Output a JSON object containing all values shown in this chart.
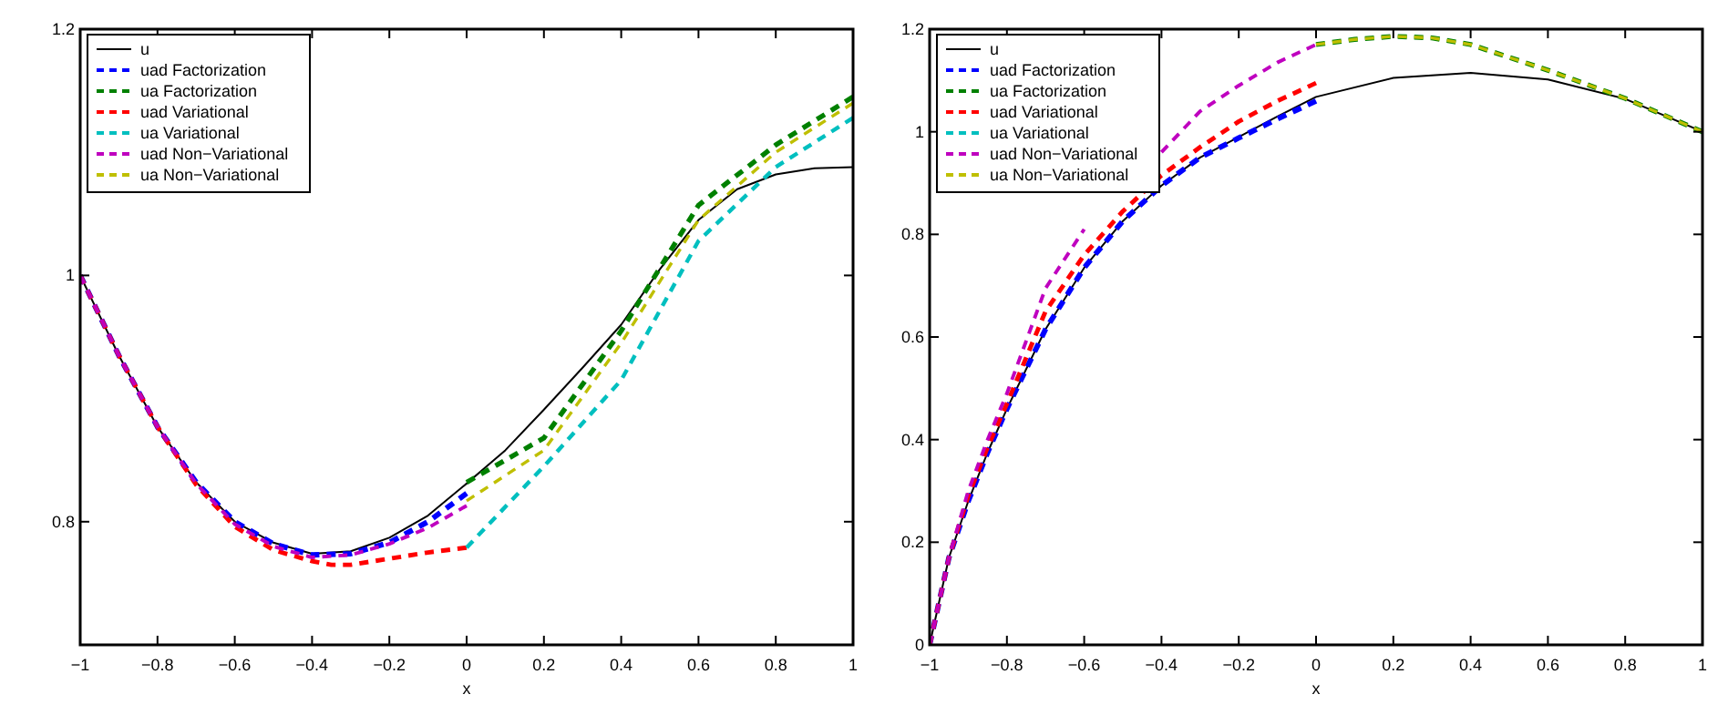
{
  "chart_data": [
    {
      "type": "line",
      "xlabel": "x",
      "xlim": [
        -1,
        1
      ],
      "ylim": [
        0.7,
        1.2
      ],
      "xticks": [
        {
          "value": -1,
          "label": "−1"
        },
        {
          "value": -0.8,
          "label": "−0.8"
        },
        {
          "value": -0.6,
          "label": "−0.6"
        },
        {
          "value": -0.4,
          "label": "−0.4"
        },
        {
          "value": -0.2,
          "label": "−0.2"
        },
        0,
        0.2,
        0.4,
        0.6,
        0.8,
        1
      ],
      "yticks": [
        0.8,
        1,
        1.2
      ],
      "legend": "top left",
      "grid": false,
      "marker": "none",
      "series": [
        {
          "name": "u",
          "color": "#000000",
          "line_style": "solid",
          "x": [
            -1,
            -0.9,
            -0.8,
            -0.7,
            -0.6,
            -0.5,
            -0.4,
            -0.3,
            -0.2,
            -0.1,
            0,
            0.1,
            0.2,
            0.3,
            0.4,
            0.5,
            0.6,
            0.7,
            0.8,
            0.9,
            1
          ],
          "values": [
            1.0,
            0.935,
            0.877,
            0.832,
            0.8,
            0.783,
            0.774,
            0.776,
            0.787,
            0.805,
            0.831,
            0.858,
            0.891,
            0.925,
            0.96,
            1.005,
            1.045,
            1.07,
            1.082,
            1.087,
            1.088
          ]
        },
        {
          "name": "uad Factorization",
          "color": "#0000ff",
          "line_style": "dashed",
          "x": [
            -1,
            -0.9,
            -0.8,
            -0.7,
            -0.6,
            -0.5,
            -0.4,
            -0.3,
            -0.2,
            -0.1,
            0
          ],
          "values": [
            1.0,
            0.935,
            0.877,
            0.832,
            0.8,
            0.782,
            0.773,
            0.774,
            0.783,
            0.8,
            0.823
          ]
        },
        {
          "name": "ua Factorization",
          "color": "#008000",
          "line_style": "dashed",
          "x": [
            0,
            0.2,
            0.4,
            0.6,
            0.8,
            1
          ],
          "values": [
            0.832,
            0.868,
            0.955,
            1.057,
            1.106,
            1.145
          ]
        },
        {
          "name": "uad Variational",
          "color": "#ff0000",
          "line_style": "dashed",
          "x": [
            -1,
            -0.9,
            -0.8,
            -0.7,
            -0.6,
            -0.5,
            -0.4,
            -0.35,
            -0.3,
            -0.2,
            -0.1,
            0
          ],
          "values": [
            1.0,
            0.935,
            0.877,
            0.83,
            0.796,
            0.777,
            0.768,
            0.765,
            0.765,
            0.77,
            0.775,
            0.779
          ]
        },
        {
          "name": "ua Variational",
          "color": "#00bfbf",
          "line_style": "dashed",
          "x": [
            0,
            0.2,
            0.4,
            0.6,
            0.8,
            1
          ],
          "values": [
            0.779,
            0.845,
            0.915,
            1.028,
            1.088,
            1.128
          ]
        },
        {
          "name": "uad Non−Variational",
          "color": "#bf00bf",
          "line_style": "dashed",
          "x": [
            -1,
            -0.9,
            -0.8,
            -0.7,
            -0.6,
            -0.5,
            -0.4,
            -0.3,
            -0.2,
            -0.1,
            0
          ],
          "values": [
            1.0,
            0.935,
            0.877,
            0.831,
            0.798,
            0.78,
            0.771,
            0.773,
            0.782,
            0.795,
            0.813
          ]
        },
        {
          "name": "ua Non−Variational",
          "color": "#bfbf00",
          "line_style": "dashed",
          "x": [
            0,
            0.2,
            0.4,
            0.6,
            0.8,
            1
          ],
          "values": [
            0.817,
            0.858,
            0.945,
            1.045,
            1.1,
            1.14
          ]
        }
      ]
    },
    {
      "type": "line",
      "xlabel": "x",
      "xlim": [
        -1,
        1
      ],
      "ylim": [
        0,
        1.2
      ],
      "xticks": [
        {
          "value": -1,
          "label": "−1"
        },
        {
          "value": -0.8,
          "label": "−0.8"
        },
        {
          "value": -0.6,
          "label": "−0.6"
        },
        {
          "value": -0.4,
          "label": "−0.4"
        },
        {
          "value": -0.2,
          "label": "−0.2"
        },
        0,
        0.2,
        0.4,
        0.6,
        0.8,
        1
      ],
      "yticks": [
        0,
        0.2,
        0.4,
        0.6,
        0.8,
        1,
        1.2
      ],
      "legend": "top left",
      "grid": false,
      "marker": "none",
      "series": [
        {
          "name": "u",
          "color": "#000000",
          "line_style": "solid",
          "x": [
            -1,
            -0.95,
            -0.9,
            -0.85,
            -0.8,
            -0.7,
            -0.6,
            -0.5,
            -0.4,
            -0.3,
            -0.2,
            -0.1,
            0,
            0.2,
            0.4,
            0.6,
            0.8,
            1
          ],
          "values": [
            0,
            0.17,
            0.28,
            0.375,
            0.46,
            0.615,
            0.735,
            0.826,
            0.895,
            0.95,
            0.99,
            1.03,
            1.068,
            1.105,
            1.115,
            1.102,
            1.064,
            1.0
          ]
        },
        {
          "name": "uad Factorization",
          "color": "#0000ff",
          "line_style": "dashed",
          "x": [
            -1,
            -0.95,
            -0.9,
            -0.85,
            -0.8,
            -0.7,
            -0.6,
            -0.5,
            -0.4,
            -0.3,
            -0.2,
            -0.1,
            0
          ],
          "values": [
            0,
            0.17,
            0.28,
            0.375,
            0.46,
            0.615,
            0.735,
            0.826,
            0.895,
            0.95,
            0.988,
            1.025,
            1.06
          ]
        },
        {
          "name": "ua Factorization",
          "color": "#008000",
          "line_style": "dashed",
          "x": [
            0,
            0.1,
            0.2,
            0.3,
            0.4,
            0.6,
            0.8,
            1
          ],
          "values": [
            1.17,
            1.18,
            1.186,
            1.183,
            1.17,
            1.12,
            1.065,
            1.0
          ]
        },
        {
          "name": "uad Variational",
          "color": "#ff0000",
          "line_style": "dashed",
          "x": [
            -1,
            -0.95,
            -0.9,
            -0.85,
            -0.8,
            -0.7,
            -0.6,
            -0.5,
            -0.4,
            -0.3,
            -0.2,
            -0.1,
            0
          ],
          "values": [
            0,
            0.17,
            0.29,
            0.385,
            0.47,
            0.65,
            0.76,
            0.845,
            0.915,
            0.97,
            1.02,
            1.06,
            1.095
          ]
        },
        {
          "name": "ua Variational",
          "color": "#00bfbf",
          "line_style": "dashed",
          "values": [
            null
          ]
        },
        {
          "name": "uad Non−Variational",
          "color": "#bf00bf",
          "line_style": "dashed",
          "x": [
            -1,
            -0.95,
            -0.9,
            -0.85,
            -0.8,
            -0.7,
            -0.6,
            -0.5,
            -0.4,
            -0.3,
            -0.2,
            -0.1,
            0
          ],
          "values": [
            0,
            0.17,
            0.3,
            0.4,
            0.49,
            0.695,
            0.81,
            null,
            0.96,
            1.04,
            1.09,
            1.135,
            1.17
          ]
        },
        {
          "name": "ua Non−Variational",
          "color": "#bfbf00",
          "line_style": "dashed",
          "x": [
            0,
            0.1,
            0.2,
            0.3,
            0.4,
            0.6,
            0.8,
            1
          ],
          "values": [
            1.17,
            1.18,
            1.186,
            1.183,
            1.17,
            1.12,
            1.065,
            1.0
          ]
        }
      ]
    }
  ]
}
